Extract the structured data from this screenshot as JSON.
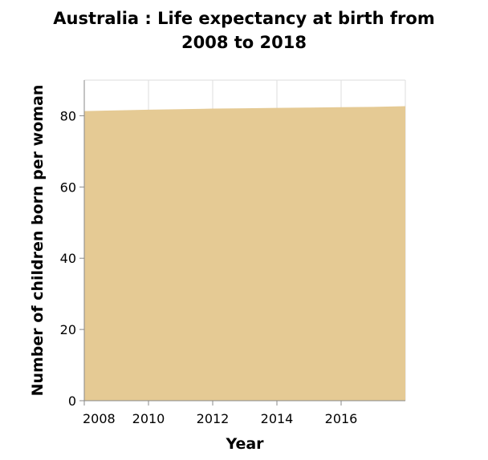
{
  "chart_data": {
    "type": "area",
    "title_line1": "Australia : Life expectancy at birth from",
    "title_line2": "2008 to 2018",
    "xlabel": "Year",
    "ylabel": "Number of children born per woman",
    "x": [
      2008,
      2009,
      2010,
      2011,
      2012,
      2013,
      2014,
      2015,
      2016,
      2017,
      2018
    ],
    "values": [
      81.3,
      81.5,
      81.7,
      81.85,
      82.0,
      82.1,
      82.2,
      82.3,
      82.4,
      82.5,
      82.7
    ],
    "xlim": [
      2008,
      2018
    ],
    "ylim": [
      0,
      90
    ],
    "xticks": [
      2008,
      2010,
      2012,
      2014,
      2016
    ],
    "yticks": [
      0,
      20,
      40,
      60,
      80
    ],
    "grid": true,
    "fill_color": "#e5ca94",
    "grid_color": "#dddddd"
  }
}
